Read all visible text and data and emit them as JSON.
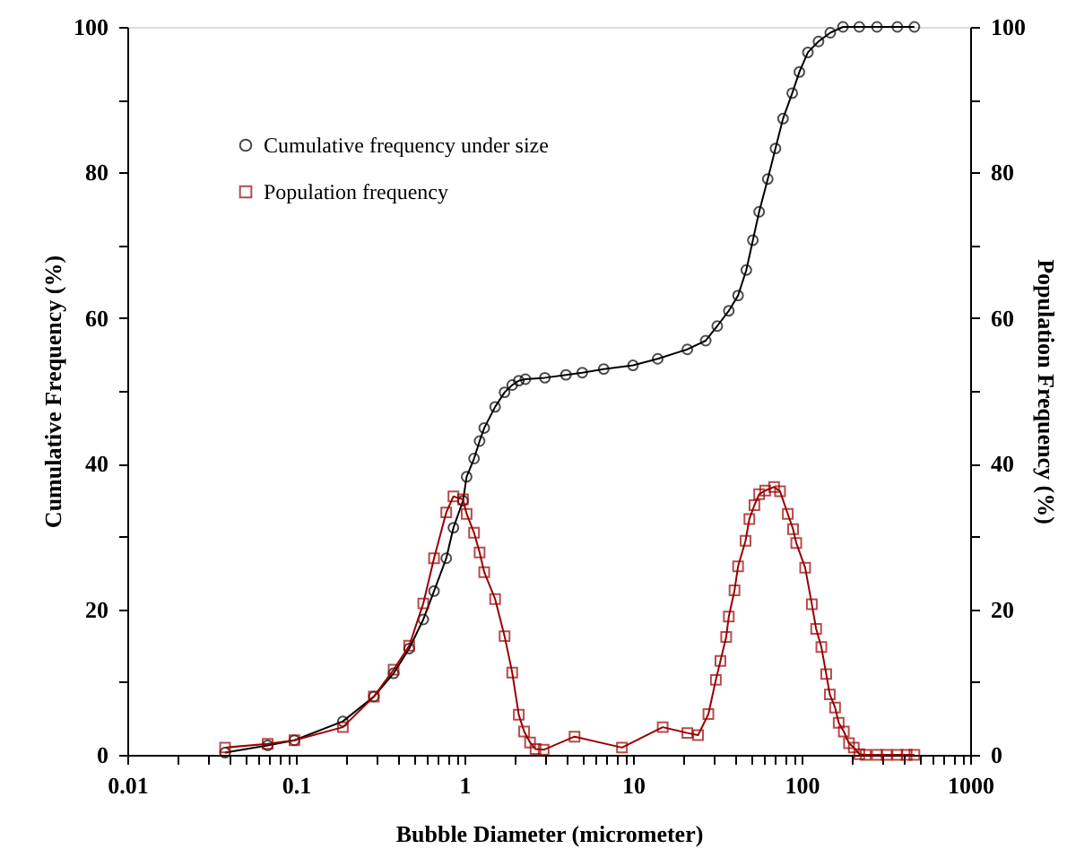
{
  "chart_data": {
    "type": "line",
    "xlabel": "Bubble Diameter (micrometer)",
    "ylabel": "Cumulative Frequency (%)",
    "y2label": "Population Frequency (%)",
    "log": "x",
    "grid": false,
    "legend": "top left",
    "line_style": "solid",
    "xlim": [
      0.01,
      1000
    ],
    "ylim": [
      0,
      100
    ],
    "y2lim": [
      0,
      100
    ],
    "xticks": [
      0.01,
      {
        "value": 0.02,
        "label": null
      },
      {
        "value": 0.03,
        "label": null
      },
      {
        "value": 0.04,
        "label": null
      },
      {
        "value": 0.05,
        "label": null
      },
      {
        "value": 0.06,
        "label": null
      },
      {
        "value": 0.07,
        "label": null
      },
      {
        "value": 0.08,
        "label": null
      },
      {
        "value": 0.09,
        "label": null
      },
      0.1,
      {
        "value": 0.2,
        "label": null
      },
      {
        "value": 0.3,
        "label": null
      },
      {
        "value": 0.4,
        "label": null
      },
      {
        "value": 0.5,
        "label": null
      },
      {
        "value": 0.6,
        "label": null
      },
      {
        "value": 0.7,
        "label": null
      },
      {
        "value": 0.8,
        "label": null
      },
      {
        "value": 0.9,
        "label": null
      },
      1,
      {
        "value": 2,
        "label": null
      },
      {
        "value": 3,
        "label": null
      },
      {
        "value": 4,
        "label": null
      },
      {
        "value": 5,
        "label": null
      },
      {
        "value": 6,
        "label": null
      },
      {
        "value": 7,
        "label": null
      },
      {
        "value": 8,
        "label": null
      },
      {
        "value": 9,
        "label": null
      },
      10,
      {
        "value": 20,
        "label": null
      },
      {
        "value": 30,
        "label": null
      },
      {
        "value": 40,
        "label": null
      },
      {
        "value": 50,
        "label": null
      },
      {
        "value": 60,
        "label": null
      },
      {
        "value": 70,
        "label": null
      },
      {
        "value": 80,
        "label": null
      },
      {
        "value": 90,
        "label": null
      },
      100,
      {
        "value": 200,
        "label": null
      },
      {
        "value": 300,
        "label": null
      },
      {
        "value": 400,
        "label": null
      },
      {
        "value": 500,
        "label": null
      },
      {
        "value": 600,
        "label": null
      },
      {
        "value": 700,
        "label": null
      },
      {
        "value": 800,
        "label": null
      },
      {
        "value": 900,
        "label": null
      },
      1000
    ],
    "yticks": [
      0,
      {
        "value": 10,
        "label": null
      },
      20,
      {
        "value": 30,
        "label": null
      },
      40,
      {
        "value": 50,
        "label": null
      },
      60,
      {
        "value": 70,
        "label": null
      },
      80,
      {
        "value": 90,
        "label": null
      },
      100
    ],
    "y2ticks": [
      0,
      {
        "value": 10,
        "label": null
      },
      20,
      {
        "value": 30,
        "label": null
      },
      40,
      {
        "value": 50,
        "label": null
      },
      60,
      {
        "value": 70,
        "label": null
      },
      80,
      {
        "value": 90,
        "label": null
      },
      100
    ],
    "series": [
      {
        "name": "Cumulative frequency under size",
        "color": "#000000",
        "marker": "circle",
        "x": [
          0.038,
          0.068,
          0.098,
          0.19,
          0.29,
          0.38,
          0.47,
          0.57,
          0.66,
          0.78,
          0.86,
          0.98,
          1.03,
          1.14,
          1.23,
          1.31,
          1.52,
          1.73,
          1.92,
          2.1,
          2.3,
          3,
          4,
          5,
          6.7,
          10,
          14,
          21,
          27,
          31.6,
          37,
          42,
          47,
          51.4,
          56,
          63,
          70,
          77.6,
          88,
          97,
          109,
          126,
          148,
          176,
          220,
          280,
          370,
          467
        ],
        "values": [
          0.3,
          1.3,
          2.0,
          4.6,
          8.0,
          11.2,
          14.6,
          18.6,
          22.5,
          27.0,
          31.2,
          34.9,
          38.2,
          40.7,
          43.1,
          44.9,
          47.8,
          49.8,
          50.8,
          51.4,
          51.6,
          51.8,
          52.2,
          52.5,
          53.0,
          53.5,
          54.4,
          55.7,
          56.9,
          58.9,
          61.0,
          63.1,
          66.6,
          70.7,
          74.6,
          79.1,
          83.3,
          87.4,
          90.9,
          93.8,
          96.5,
          98.0,
          99.2,
          100,
          100,
          100,
          100,
          100
        ]
      },
      {
        "name": "Population frequency",
        "color": "#990000",
        "marker": "square",
        "axis": "y2",
        "x": [
          0.038,
          0.068,
          0.098,
          0.19,
          0.29,
          0.38,
          0.47,
          0.57,
          0.66,
          0.78,
          0.86,
          0.98,
          1.03,
          1.14,
          1.23,
          1.31,
          1.52,
          1.73,
          1.92,
          2.1,
          2.26,
          2.45,
          2.64,
          2.95,
          4.5,
          8.6,
          15,
          21,
          24.3,
          28,
          31,
          33,
          35.7,
          37,
          40,
          42,
          46.5,
          49,
          52.5,
          56,
          60.8,
          68.7,
          74.5,
          82.8,
          89,
          93,
          105,
          115,
          122,
          131,
          140,
          147,
          158,
          166,
          178,
          191,
          204,
          220,
          240,
          280,
          320,
          370,
          420,
          467
        ],
        "values": [
          1.0,
          1.5,
          2.0,
          3.8,
          8.0,
          11.7,
          15.0,
          20.8,
          27.0,
          33.3,
          35.5,
          35.1,
          33.1,
          30.5,
          27.8,
          25.1,
          21.4,
          16.3,
          11.3,
          5.5,
          3.2,
          1.7,
          0.8,
          0.7,
          2.5,
          1.0,
          3.8,
          3.0,
          2.7,
          5.6,
          10.3,
          12.9,
          16.2,
          19.0,
          22.6,
          25.9,
          29.4,
          32.4,
          34.3,
          35.8,
          36.3,
          36.8,
          36.2,
          33.1,
          31.0,
          29.1,
          25.7,
          20.7,
          17.3,
          14.8,
          11.1,
          8.3,
          6.5,
          4.4,
          3.2,
          1.6,
          1.0,
          0.1,
          0,
          0,
          0,
          0,
          0,
          0
        ]
      }
    ]
  }
}
